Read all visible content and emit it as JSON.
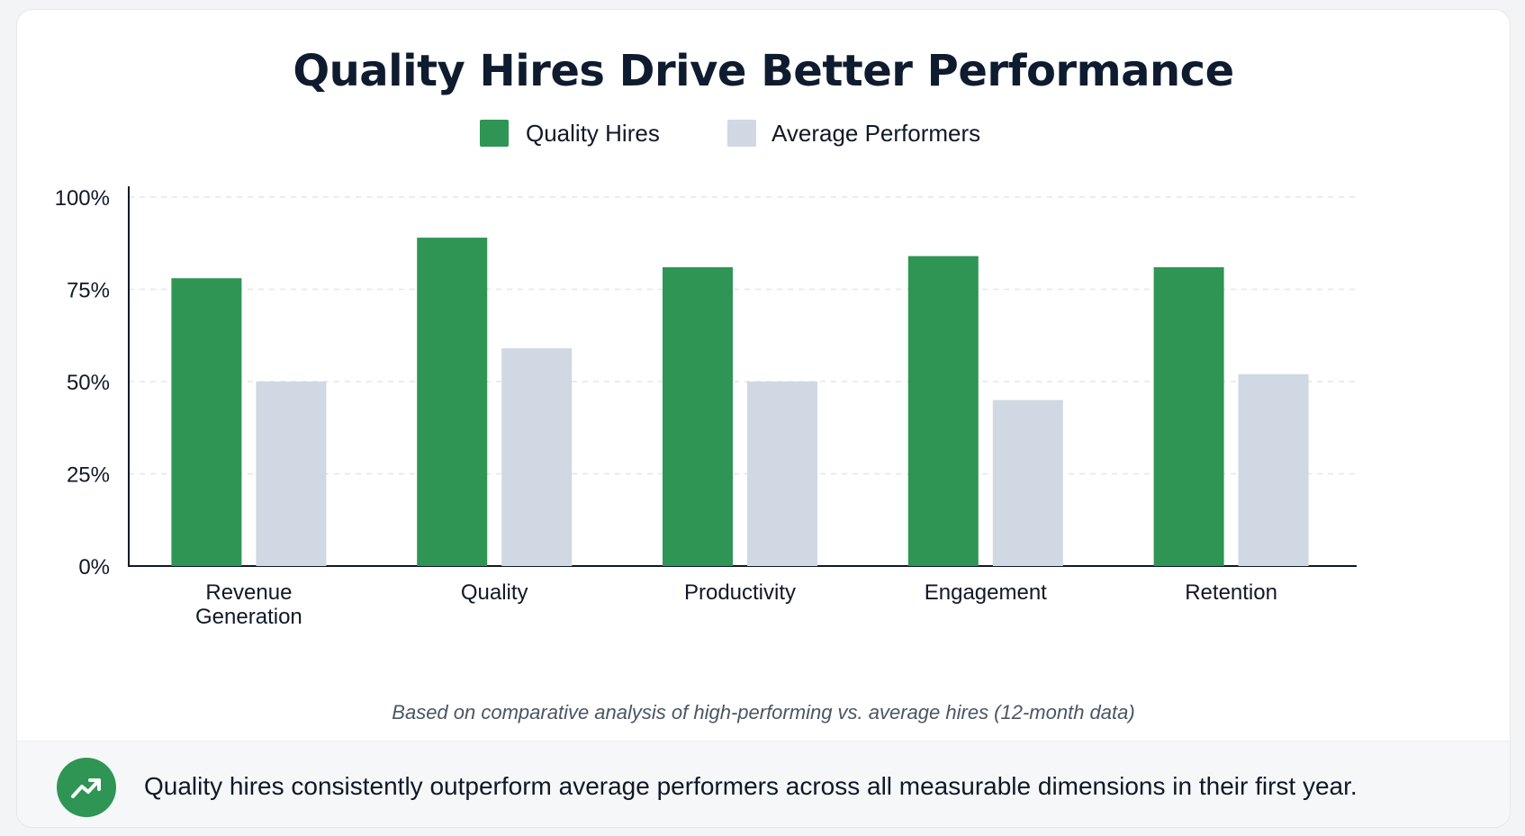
{
  "chart_data": {
    "type": "bar",
    "title": "Quality Hires Drive Better Performance",
    "categories": [
      [
        "Revenue",
        "Generation"
      ],
      [
        "Quality"
      ],
      [
        "Productivity"
      ],
      [
        "Engagement"
      ],
      [
        "Retention"
      ]
    ],
    "series": [
      {
        "name": "Quality Hires",
        "color": "#2e9555",
        "values": [
          78,
          89,
          81,
          84,
          81
        ]
      },
      {
        "name": "Average Performers",
        "color": "#cfd8e3",
        "values": [
          50,
          59,
          50,
          45,
          52
        ]
      }
    ],
    "ylim": [
      0,
      100
    ],
    "yticks": [
      0,
      25,
      50,
      75,
      100
    ],
    "ytick_labels": [
      "0%",
      "25%",
      "50%",
      "75%",
      "100%"
    ],
    "grid": true,
    "legend": "top-center"
  },
  "footnote": "Based on comparative analysis of high-performing vs. average hires (12-month data)",
  "insight": {
    "icon": "trending-up-icon",
    "text": "Quality hires consistently outperform average performers across all measurable dimensions in their first year."
  }
}
